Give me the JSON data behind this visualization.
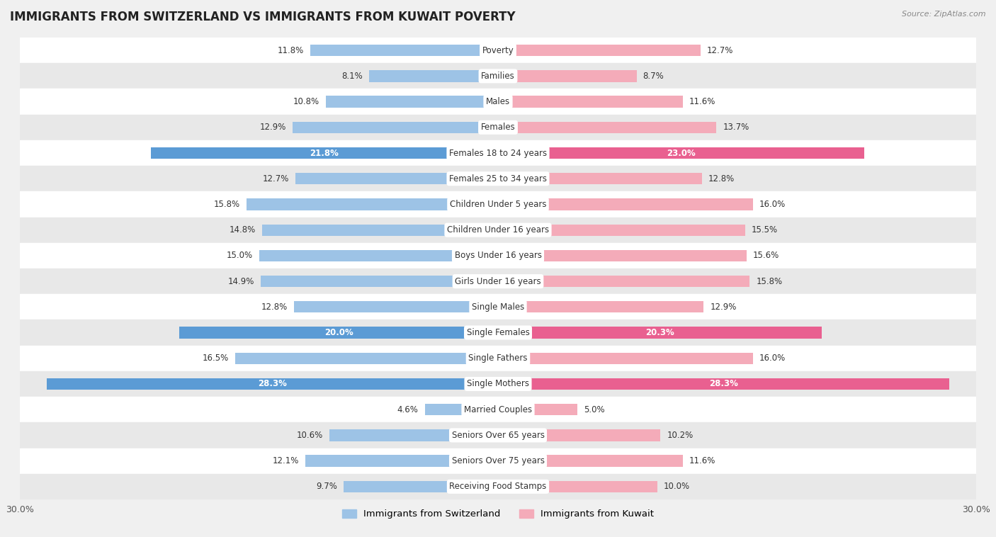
{
  "title": "IMMIGRANTS FROM SWITZERLAND VS IMMIGRANTS FROM KUWAIT POVERTY",
  "source": "Source: ZipAtlas.com",
  "categories": [
    "Poverty",
    "Families",
    "Males",
    "Females",
    "Females 18 to 24 years",
    "Females 25 to 34 years",
    "Children Under 5 years",
    "Children Under 16 years",
    "Boys Under 16 years",
    "Girls Under 16 years",
    "Single Males",
    "Single Females",
    "Single Fathers",
    "Single Mothers",
    "Married Couples",
    "Seniors Over 65 years",
    "Seniors Over 75 years",
    "Receiving Food Stamps"
  ],
  "switzerland_values": [
    11.8,
    8.1,
    10.8,
    12.9,
    21.8,
    12.7,
    15.8,
    14.8,
    15.0,
    14.9,
    12.8,
    20.0,
    16.5,
    28.3,
    4.6,
    10.6,
    12.1,
    9.7
  ],
  "kuwait_values": [
    12.7,
    8.7,
    11.6,
    13.7,
    23.0,
    12.8,
    16.0,
    15.5,
    15.6,
    15.8,
    12.9,
    20.3,
    16.0,
    28.3,
    5.0,
    10.2,
    11.6,
    10.0
  ],
  "switzerland_color": "#9dc3e6",
  "kuwait_color": "#f4abb9",
  "switzerland_label": "Immigrants from Switzerland",
  "kuwait_label": "Immigrants from Kuwait",
  "highlight_indices": [
    4,
    11,
    13
  ],
  "highlight_color_switzerland": "#5b9bd5",
  "highlight_color_kuwait": "#e96090",
  "max_value": 30.0,
  "bg_color": "#f0f0f0",
  "row_color_even": "#ffffff",
  "row_color_odd": "#e8e8e8",
  "label_fontsize": 8.5,
  "cat_fontsize": 8.5,
  "title_fontsize": 12,
  "source_fontsize": 8
}
